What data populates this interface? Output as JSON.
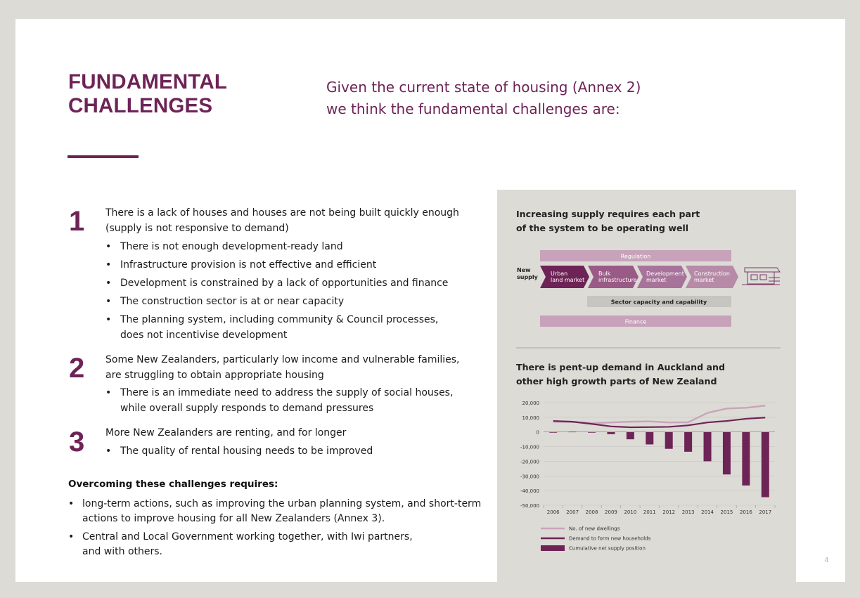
{
  "slide": {
    "heading_line1": "FUNDAMENTAL",
    "heading_line2": "CHALLENGES",
    "subtitle_line1": "Given the current state of housing (Annex 2)",
    "subtitle_line2": "we think the fundamental challenges are:",
    "page_number": "4"
  },
  "challenges": [
    {
      "number": "1",
      "text_line1": "There is a lack of houses and houses are not being built quickly enough",
      "text_line2": "(supply is not responsive to demand)",
      "bullets": [
        {
          "line1": "There is not enough development-ready land",
          "line2": ""
        },
        {
          "line1": "Infrastructure provision is not effective and efficient",
          "line2": ""
        },
        {
          "line1": "Development is constrained by a lack of opportunities and finance",
          "line2": ""
        },
        {
          "line1": "The construction sector is at or near capacity",
          "line2": ""
        },
        {
          "line1": "The planning system, including community & Council processes,",
          "line2": "does not incentivise development"
        }
      ]
    },
    {
      "number": "2",
      "text_line1": "Some New Zealanders, particularly low income and vulnerable families,",
      "text_line2": "are struggling to obtain appropriate housing",
      "bullets": [
        {
          "line1": "There is an immediate need to address the supply of social houses,",
          "line2": "while overall supply responds to demand pressures"
        }
      ]
    },
    {
      "number": "3",
      "text_line1": "More New Zealanders are renting, and for longer",
      "text_line2": "",
      "bullets": [
        {
          "line1": "The quality of rental housing needs to be improved",
          "line2": ""
        }
      ]
    }
  ],
  "overcoming": {
    "title": "Overcoming these challenges requires:",
    "bullets": [
      {
        "line1": "long-term actions, such as improving the urban planning system, and short-term",
        "line2": "actions to improve housing for all New Zealanders (Annex 3)."
      },
      {
        "line1": "Central and Local Government working together, with Iwi partners,",
        "line2": "and with others."
      }
    ]
  },
  "supply_diagram": {
    "title_line1": "Increasing supply requires each part",
    "title_line2": "of the system to be operating well",
    "regulation": "Regulation",
    "new_supply_line1": "New",
    "new_supply_line2": "supply",
    "steps": [
      {
        "line1": "Urban",
        "line2": "land market"
      },
      {
        "line1": "Bulk",
        "line2": "infrastructure"
      },
      {
        "line1": "Development",
        "line2": "market"
      },
      {
        "line1": "Construction",
        "line2": "market"
      }
    ],
    "sector_capacity": "Sector capacity and capability",
    "finance": "Finance",
    "colors": {
      "regulation": "#c7a2ba",
      "step_dark": "#6e2356",
      "step_mid": "#9a5a86",
      "step_light": "#b78aa8",
      "sector": "#c6c5c0",
      "finance": "#c7a2ba"
    }
  },
  "chart_title_line1": "There is pent-up demand in Auckland and",
  "chart_title_line2": "other high growth parts of New Zealand",
  "chart_data": {
    "type": "bar",
    "title": "There is pent-up demand in Auckland and other high growth parts of New Zealand",
    "categories": [
      "2006",
      "2007",
      "2008",
      "2009",
      "2010",
      "2011",
      "2012",
      "2013",
      "2014",
      "2015",
      "2016",
      "2017"
    ],
    "ylim": [
      -50000,
      20000
    ],
    "yticks": [
      20000,
      10000,
      0,
      -10000,
      -20000,
      -30000,
      -40000,
      -50000
    ],
    "ytick_labels": [
      "20,000",
      "10,000",
      "0",
      "-10,000",
      "-20,000",
      "-30,000",
      "-40,000",
      "-50,000"
    ],
    "series": [
      {
        "name": "No. of new dwellings",
        "type": "line",
        "color": "#c9a3bb",
        "values": [
          7000,
          6800,
          6000,
          6500,
          7000,
          7200,
          6500,
          6600,
          13000,
          16000,
          16500,
          18000
        ]
      },
      {
        "name": "Demand to form new households",
        "type": "line",
        "color": "#6e2356",
        "values": [
          7500,
          7000,
          5500,
          3800,
          3200,
          3300,
          3500,
          4500,
          6500,
          7500,
          9000,
          9800
        ]
      },
      {
        "name": "Cumulative net supply position",
        "type": "bar",
        "color": "#6e2356",
        "values": [
          -200,
          300,
          -300,
          -1500,
          -5000,
          -8500,
          -11500,
          -13500,
          -20000,
          -29000,
          -36500,
          -44500
        ]
      }
    ]
  }
}
